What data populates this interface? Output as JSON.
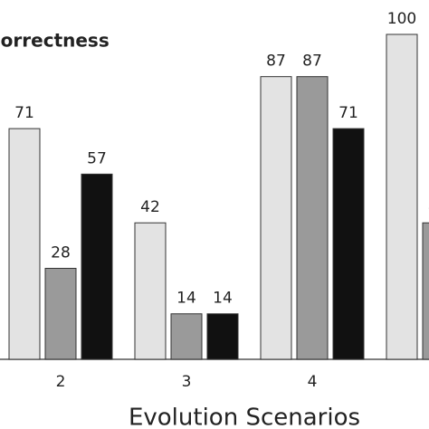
{
  "chart_data": {
    "type": "bar",
    "title": "Correctness",
    "x_label": "Evolution Scenarios",
    "categories": [
      "2",
      "3",
      "4",
      null
    ],
    "series": [
      {
        "color": "#e3e3e3",
        "values": [
          71,
          42,
          87,
          100
        ]
      },
      {
        "color": "#9a9a9a",
        "values": [
          28,
          14,
          87,
          42
        ]
      },
      {
        "color": "#111111",
        "values": [
          57,
          14,
          71,
          null
        ]
      }
    ],
    "ylim": [
      0,
      100
    ]
  }
}
